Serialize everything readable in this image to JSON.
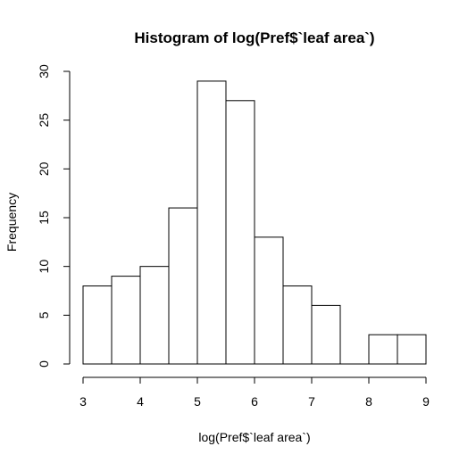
{
  "chart_data": {
    "type": "bar",
    "title": "Histogram of log(Pref$`leaf area`)",
    "xlabel": "log(Pref$`leaf area`)",
    "ylabel": "Frequency",
    "bin_edges": [
      3,
      3.5,
      4,
      4.5,
      5,
      5.5,
      6,
      6.5,
      7,
      7.5,
      8,
      8.5,
      9
    ],
    "values": [
      8,
      9,
      10,
      16,
      29,
      27,
      13,
      8,
      6,
      0,
      3,
      3
    ],
    "xlim": [
      3,
      9
    ],
    "ylim": [
      0,
      30
    ],
    "xticks": [
      "3",
      "4",
      "5",
      "6",
      "7",
      "8",
      "9"
    ],
    "yticks": [
      "0",
      "5",
      "10",
      "15",
      "20",
      "25",
      "30"
    ],
    "grid": false,
    "colors": {
      "bar_fill": "#ffffff",
      "bar_stroke": "#000000"
    }
  }
}
